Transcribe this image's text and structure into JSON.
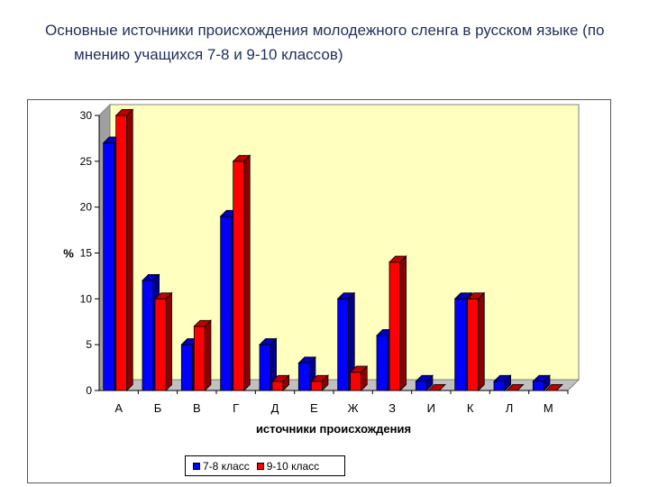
{
  "title": "Основные источники происхождения молодежного сленга в русском языке (по мнению учащихся 7-8 и 9-10 классов)",
  "colors": {
    "series_1": "#0000ff",
    "series_2": "#ff0000",
    "plot_background": "#ffffc0"
  },
  "chart_data": {
    "type": "bar",
    "title": "",
    "categories": [
      "А",
      "Б",
      "В",
      "Г",
      "Д",
      "Е",
      "Ж",
      "З",
      "И",
      "К",
      "Л",
      "М"
    ],
    "series": [
      {
        "name": "7-8 класс",
        "values": [
          27,
          12,
          5,
          19,
          5,
          3,
          10,
          6,
          1,
          10,
          1,
          1
        ]
      },
      {
        "name": "9-10 класс",
        "values": [
          30,
          10,
          7,
          25,
          1,
          1,
          2,
          14,
          0,
          10,
          0,
          0
        ]
      }
    ],
    "xlabel": "источники происхождения",
    "ylabel": "%",
    "ylim": [
      0,
      30
    ],
    "yticks": [
      0,
      5,
      10,
      15,
      20,
      25,
      30
    ],
    "grid": false,
    "legend_position": "bottom",
    "style": "3d"
  }
}
